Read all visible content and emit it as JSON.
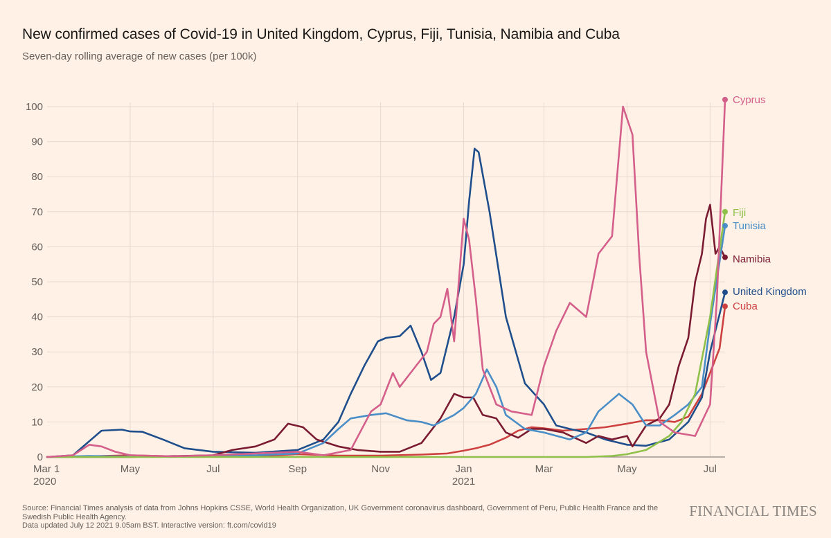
{
  "title": "New confirmed cases of Covid-19 in United Kingdom, Cyprus, Fiji, Tunisia, Namibia and Cuba",
  "subtitle": "Seven-day rolling average of new cases (per 100k)",
  "footer": {
    "source": "Source: Financial Times analysis of data from Johns Hopkins CSSE, World Health Organization, UK Government coronavirus dashboard, Government of Peru, Public Health France and the Swedish Public Health Agency.",
    "updated": "Data updated July 12 2021 9.05am BST. Interactive version: ft.com/covid19"
  },
  "brand": "FINANCIAL TIMES",
  "chart_data": {
    "type": "line",
    "title": "New confirmed cases of Covid-19 in United Kingdom, Cyprus, Fiji, Tunisia, Namibia and Cuba",
    "subtitle": "Seven-day rolling average of new cases (per 100k)",
    "xlabel": "",
    "ylabel": "",
    "ylim": [
      0,
      100
    ],
    "xlim": [
      "2020-03-01",
      "2021-07-12"
    ],
    "grid": true,
    "y_ticks": [
      0,
      10,
      20,
      30,
      40,
      50,
      60,
      70,
      80,
      90,
      100
    ],
    "x_ticks": [
      {
        "date": "2020-03-01",
        "label": "Mar 1",
        "sublabel": "2020"
      },
      {
        "date": "2020-05-01",
        "label": "May",
        "sublabel": ""
      },
      {
        "date": "2020-07-01",
        "label": "Jul",
        "sublabel": ""
      },
      {
        "date": "2020-09-01",
        "label": "Sep",
        "sublabel": ""
      },
      {
        "date": "2020-11-01",
        "label": "Nov",
        "sublabel": ""
      },
      {
        "date": "2021-01-01",
        "label": "Jan",
        "sublabel": "2021"
      },
      {
        "date": "2021-03-01",
        "label": "Mar",
        "sublabel": ""
      },
      {
        "date": "2021-05-01",
        "label": "May",
        "sublabel": ""
      },
      {
        "date": "2021-07-01",
        "label": "Jul",
        "sublabel": ""
      }
    ],
    "legend_placement": "line-end labels at right",
    "series": [
      {
        "name": "Cuba",
        "color": "#cc4040",
        "end_value": 43,
        "points": [
          [
            "2020-03-01",
            0
          ],
          [
            "2020-04-01",
            0.2
          ],
          [
            "2020-05-01",
            0.5
          ],
          [
            "2020-06-01",
            0.2
          ],
          [
            "2020-07-01",
            0.1
          ],
          [
            "2020-08-01",
            0.2
          ],
          [
            "2020-09-01",
            0.8
          ],
          [
            "2020-10-01",
            0.4
          ],
          [
            "2020-11-01",
            0.4
          ],
          [
            "2020-12-01",
            0.7
          ],
          [
            "2020-12-20",
            1.0
          ],
          [
            "2021-01-01",
            1.8
          ],
          [
            "2021-01-10",
            2.5
          ],
          [
            "2021-01-20",
            3.5
          ],
          [
            "2021-02-01",
            5.5
          ],
          [
            "2021-02-10",
            7.5
          ],
          [
            "2021-02-20",
            8.5
          ],
          [
            "2021-03-01",
            8.2
          ],
          [
            "2021-03-15",
            7.5
          ],
          [
            "2021-04-01",
            8.0
          ],
          [
            "2021-04-15",
            8.5
          ],
          [
            "2021-05-01",
            9.5
          ],
          [
            "2021-05-15",
            10.5
          ],
          [
            "2021-05-25",
            10.5
          ],
          [
            "2021-06-05",
            10.0
          ],
          [
            "2021-06-15",
            11.5
          ],
          [
            "2021-06-25",
            18.0
          ],
          [
            "2021-07-01",
            24.0
          ],
          [
            "2021-07-08",
            31.0
          ],
          [
            "2021-07-12",
            43.0
          ]
        ]
      },
      {
        "name": "United Kingdom",
        "color": "#1f4e8c",
        "end_value": 47,
        "points": [
          [
            "2020-03-01",
            0
          ],
          [
            "2020-03-20",
            0.5
          ],
          [
            "2020-04-01",
            4.5
          ],
          [
            "2020-04-10",
            7.5
          ],
          [
            "2020-04-25",
            7.8
          ],
          [
            "2020-05-01",
            7.3
          ],
          [
            "2020-05-10",
            7.2
          ],
          [
            "2020-05-25",
            5.0
          ],
          [
            "2020-06-10",
            2.5
          ],
          [
            "2020-07-01",
            1.5
          ],
          [
            "2020-08-01",
            1.2
          ],
          [
            "2020-09-01",
            2.0
          ],
          [
            "2020-09-20",
            5.0
          ],
          [
            "2020-10-01",
            10.0
          ],
          [
            "2020-10-10",
            18.0
          ],
          [
            "2020-10-20",
            26.0
          ],
          [
            "2020-10-30",
            33.0
          ],
          [
            "2020-11-05",
            34.0
          ],
          [
            "2020-11-15",
            34.5
          ],
          [
            "2020-11-23",
            37.5
          ],
          [
            "2020-12-01",
            30.0
          ],
          [
            "2020-12-08",
            22.0
          ],
          [
            "2020-12-15",
            24.0
          ],
          [
            "2020-12-25",
            40.0
          ],
          [
            "2021-01-01",
            55.0
          ],
          [
            "2021-01-05",
            73.0
          ],
          [
            "2021-01-09",
            88.0
          ],
          [
            "2021-01-12",
            87.0
          ],
          [
            "2021-01-20",
            70.0
          ],
          [
            "2021-02-01",
            40.0
          ],
          [
            "2021-02-15",
            21.0
          ],
          [
            "2021-03-01",
            15.0
          ],
          [
            "2021-03-10",
            9.0
          ],
          [
            "2021-03-20",
            8.0
          ],
          [
            "2021-04-01",
            7.0
          ],
          [
            "2021-04-15",
            5.0
          ],
          [
            "2021-05-01",
            3.5
          ],
          [
            "2021-05-15",
            3.2
          ],
          [
            "2021-06-01",
            5.0
          ],
          [
            "2021-06-15",
            10.0
          ],
          [
            "2021-06-25",
            17.0
          ],
          [
            "2021-07-01",
            30.0
          ],
          [
            "2021-07-12",
            47.0
          ]
        ]
      },
      {
        "name": "Namibia",
        "color": "#7a1b32",
        "end_value": 57,
        "points": [
          [
            "2020-03-01",
            0
          ],
          [
            "2020-05-01",
            0
          ],
          [
            "2020-07-01",
            0.5
          ],
          [
            "2020-07-15",
            2.0
          ],
          [
            "2020-08-01",
            3.0
          ],
          [
            "2020-08-15",
            5.0
          ],
          [
            "2020-08-25",
            9.5
          ],
          [
            "2020-09-05",
            8.5
          ],
          [
            "2020-09-15",
            5.0
          ],
          [
            "2020-10-01",
            3.0
          ],
          [
            "2020-10-15",
            2.0
          ],
          [
            "2020-11-01",
            1.5
          ],
          [
            "2020-11-15",
            1.5
          ],
          [
            "2020-12-01",
            4.0
          ],
          [
            "2020-12-15",
            11.0
          ],
          [
            "2020-12-25",
            18.0
          ],
          [
            "2021-01-01",
            17.0
          ],
          [
            "2021-01-08",
            17.0
          ],
          [
            "2021-01-15",
            12.0
          ],
          [
            "2021-01-25",
            11.0
          ],
          [
            "2021-02-01",
            7.0
          ],
          [
            "2021-02-10",
            5.5
          ],
          [
            "2021-02-20",
            8.0
          ],
          [
            "2021-03-01",
            8.0
          ],
          [
            "2021-03-15",
            7.0
          ],
          [
            "2021-04-01",
            4.0
          ],
          [
            "2021-04-10",
            6.0
          ],
          [
            "2021-04-20",
            5.0
          ],
          [
            "2021-05-01",
            6.0
          ],
          [
            "2021-05-05",
            3.0
          ],
          [
            "2021-05-15",
            9.0
          ],
          [
            "2021-05-25",
            11.0
          ],
          [
            "2021-06-01",
            15.0
          ],
          [
            "2021-06-08",
            26.0
          ],
          [
            "2021-06-15",
            34.0
          ],
          [
            "2021-06-20",
            50.0
          ],
          [
            "2021-06-25",
            58.0
          ],
          [
            "2021-06-28",
            68.0
          ],
          [
            "2021-07-01",
            72.0
          ],
          [
            "2021-07-05",
            58.0
          ],
          [
            "2021-07-08",
            60.0
          ],
          [
            "2021-07-12",
            57.0
          ]
        ]
      },
      {
        "name": "Tunisia",
        "color": "#4a8ec8",
        "end_value": 66,
        "points": [
          [
            "2020-03-01",
            0
          ],
          [
            "2020-04-01",
            0.3
          ],
          [
            "2020-05-01",
            0.1
          ],
          [
            "2020-07-01",
            0.2
          ],
          [
            "2020-08-01",
            0.5
          ],
          [
            "2020-09-01",
            1.0
          ],
          [
            "2020-09-20",
            4.0
          ],
          [
            "2020-10-01",
            8.0
          ],
          [
            "2020-10-10",
            11.0
          ],
          [
            "2020-10-25",
            12.0
          ],
          [
            "2020-11-05",
            12.5
          ],
          [
            "2020-11-20",
            10.5
          ],
          [
            "2020-12-01",
            10.0
          ],
          [
            "2020-12-10",
            9.0
          ],
          [
            "2020-12-25",
            12.0
          ],
          [
            "2021-01-01",
            14.0
          ],
          [
            "2021-01-10",
            18.0
          ],
          [
            "2021-01-18",
            25.0
          ],
          [
            "2021-01-25",
            20.0
          ],
          [
            "2021-02-01",
            12.0
          ],
          [
            "2021-02-15",
            8.0
          ],
          [
            "2021-03-01",
            7.0
          ],
          [
            "2021-03-20",
            5.0
          ],
          [
            "2021-04-01",
            7.0
          ],
          [
            "2021-04-10",
            13.0
          ],
          [
            "2021-04-25",
            18.0
          ],
          [
            "2021-05-05",
            15.0
          ],
          [
            "2021-05-15",
            9.0
          ],
          [
            "2021-05-25",
            9.0
          ],
          [
            "2021-06-05",
            12.0
          ],
          [
            "2021-06-15",
            15.0
          ],
          [
            "2021-06-25",
            20.0
          ],
          [
            "2021-07-01",
            38.0
          ],
          [
            "2021-07-12",
            66.0
          ]
        ]
      },
      {
        "name": "Fiji",
        "color": "#8fc04a",
        "end_value": 70,
        "points": [
          [
            "2020-03-01",
            0
          ],
          [
            "2021-04-01",
            0
          ],
          [
            "2021-04-20",
            0.3
          ],
          [
            "2021-05-01",
            0.8
          ],
          [
            "2021-05-15",
            2.0
          ],
          [
            "2021-06-01",
            6.0
          ],
          [
            "2021-06-10",
            10.0
          ],
          [
            "2021-06-20",
            18.0
          ],
          [
            "2021-07-01",
            40.0
          ],
          [
            "2021-07-12",
            70.0
          ]
        ]
      },
      {
        "name": "Cyprus",
        "color": "#d45f8a",
        "end_value": 102,
        "points": [
          [
            "2020-03-01",
            0
          ],
          [
            "2020-03-20",
            0.5
          ],
          [
            "2020-04-01",
            3.5
          ],
          [
            "2020-04-10",
            3.0
          ],
          [
            "2020-04-20",
            1.5
          ],
          [
            "2020-05-01",
            0.5
          ],
          [
            "2020-06-01",
            0.2
          ],
          [
            "2020-07-01",
            0.5
          ],
          [
            "2020-08-01",
            1.0
          ],
          [
            "2020-09-01",
            1.5
          ],
          [
            "2020-09-20",
            0.5
          ],
          [
            "2020-10-10",
            2.0
          ],
          [
            "2020-10-25",
            13.0
          ],
          [
            "2020-11-01",
            15.0
          ],
          [
            "2020-11-10",
            24.0
          ],
          [
            "2020-11-15",
            20.0
          ],
          [
            "2020-11-25",
            25.0
          ],
          [
            "2020-12-05",
            30.0
          ],
          [
            "2020-12-10",
            38.0
          ],
          [
            "2020-12-15",
            40.0
          ],
          [
            "2020-12-20",
            48.0
          ],
          [
            "2020-12-25",
            33.0
          ],
          [
            "2021-01-01",
            68.0
          ],
          [
            "2021-01-05",
            62.0
          ],
          [
            "2021-01-10",
            45.0
          ],
          [
            "2021-01-15",
            25.0
          ],
          [
            "2021-01-25",
            15.0
          ],
          [
            "2021-02-05",
            13.0
          ],
          [
            "2021-02-20",
            12.0
          ],
          [
            "2021-03-01",
            26.0
          ],
          [
            "2021-03-10",
            36.0
          ],
          [
            "2021-03-20",
            44.0
          ],
          [
            "2021-04-01",
            40.0
          ],
          [
            "2021-04-10",
            58.0
          ],
          [
            "2021-04-20",
            63.0
          ],
          [
            "2021-04-28",
            100.0
          ],
          [
            "2021-05-05",
            92.0
          ],
          [
            "2021-05-10",
            57.0
          ],
          [
            "2021-05-15",
            30.0
          ],
          [
            "2021-05-25",
            10.0
          ],
          [
            "2021-06-05",
            7.0
          ],
          [
            "2021-06-20",
            6.0
          ],
          [
            "2021-07-01",
            15.0
          ],
          [
            "2021-07-06",
            45.0
          ],
          [
            "2021-07-12",
            102.0
          ]
        ]
      }
    ]
  }
}
